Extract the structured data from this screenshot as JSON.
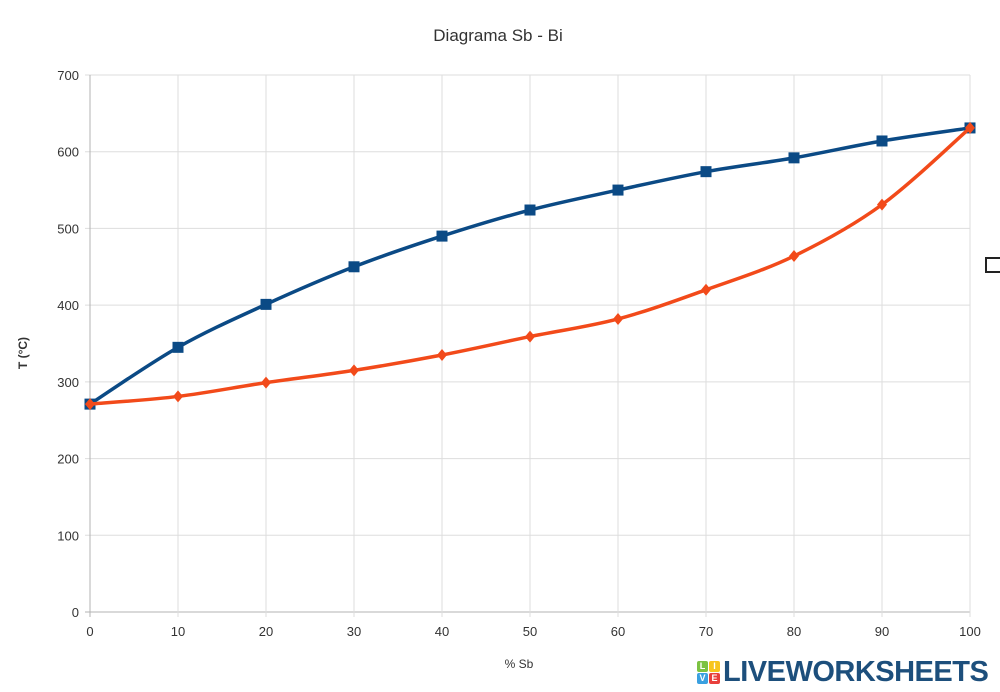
{
  "chart_data": {
    "type": "line",
    "title": "Diagrama Sb - Bi",
    "xlabel": "% Sb",
    "ylabel": "T (°C)",
    "xlim": [
      0,
      100
    ],
    "ylim": [
      0,
      700
    ],
    "xticks": [
      0,
      10,
      20,
      30,
      40,
      50,
      60,
      70,
      80,
      90,
      100
    ],
    "yticks": [
      0,
      100,
      200,
      300,
      400,
      500,
      600,
      700
    ],
    "grid": true,
    "smooth": true,
    "series": [
      {
        "color": "#0b4a85",
        "marker": "square",
        "x": [
          0,
          10,
          20,
          30,
          40,
          50,
          60,
          70,
          80,
          90,
          100
        ],
        "y": [
          271,
          345,
          401,
          450,
          490,
          524,
          550,
          574,
          592,
          614,
          631
        ]
      },
      {
        "color": "#f24a1a",
        "marker": "diamond",
        "x": [
          0,
          10,
          20,
          30,
          40,
          50,
          60,
          70,
          80,
          90,
          100
        ],
        "y": [
          271,
          281,
          299,
          315,
          335,
          359,
          382,
          420,
          464,
          531,
          631
        ]
      }
    ]
  },
  "logo": {
    "text": "LIVEWORKSHEETS",
    "blocks": [
      "L",
      "I",
      "V",
      "E"
    ]
  }
}
